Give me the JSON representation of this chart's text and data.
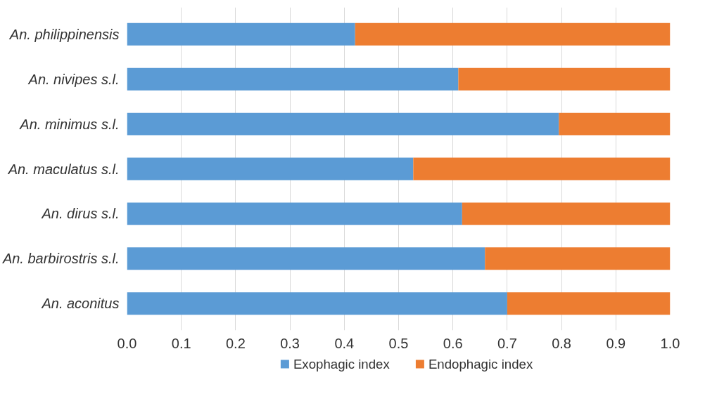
{
  "chart_data": {
    "type": "bar",
    "orientation": "horizontal",
    "stacked": true,
    "categories": [
      "An. philippinensis",
      "An. nivipes s.l.",
      "An. minimus s.l.",
      "An. maculatus s.l.",
      "An. dirus s.l.",
      "An. barbirostris s.l.",
      "An. aconitus"
    ],
    "series": [
      {
        "name": "Exophagic index",
        "color": "#5b9bd5",
        "values": [
          0.42,
          0.61,
          0.795,
          0.527,
          0.617,
          0.659,
          0.7
        ]
      },
      {
        "name": "Endophagic index",
        "color": "#ed7d31",
        "values": [
          0.58,
          0.39,
          0.205,
          0.473,
          0.383,
          0.341,
          0.3
        ]
      }
    ],
    "xlim": [
      0,
      1
    ],
    "xticks": [
      {
        "value": 0,
        "label": "0.0"
      },
      {
        "value": 0.1,
        "label": "0.1"
      },
      {
        "value": 0.2,
        "label": "0.2"
      },
      {
        "value": 0.3,
        "label": "0.3"
      },
      {
        "value": 0.4,
        "label": "0.4"
      },
      {
        "value": 0.5,
        "label": "0.5"
      },
      {
        "value": 0.6,
        "label": "0.6"
      },
      {
        "value": 0.7,
        "label": "0.7"
      },
      {
        "value": 0.8,
        "label": "0.8"
      },
      {
        "value": 0.9,
        "label": "0.9"
      },
      {
        "value": 1,
        "label": "1.0"
      }
    ],
    "grid": "x",
    "legend": "bottom"
  }
}
